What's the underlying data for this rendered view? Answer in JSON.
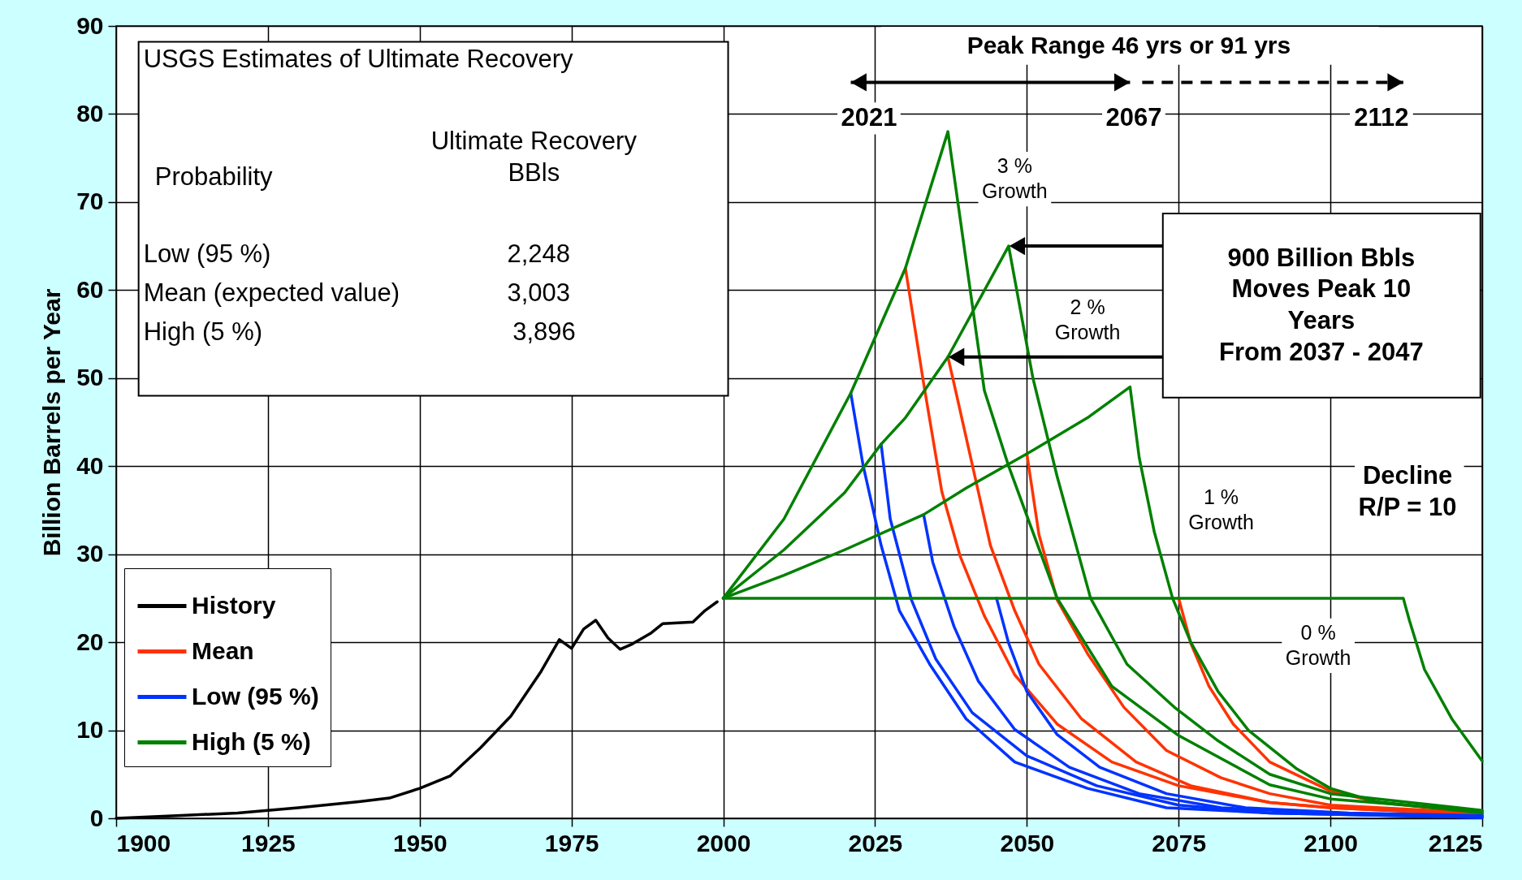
{
  "chart_data": {
    "type": "line",
    "ylabel": "Billion Barrels per Year",
    "xlim": [
      1900,
      2125
    ],
    "xticks": [
      1900,
      1925,
      1950,
      1975,
      2000,
      2025,
      2050,
      2075,
      2100,
      2125
    ],
    "ylim": [
      0,
      90
    ],
    "yticks": [
      0,
      10,
      20,
      30,
      40,
      50,
      60,
      70,
      80,
      90
    ],
    "grid": true,
    "legend": "bottom left",
    "series": [
      {
        "name": "History",
        "color": "#000000",
        "x": [
          1900,
          1910,
          1920,
          1925,
          1930,
          1940,
          1945,
          1950,
          1955,
          1960,
          1965,
          1970,
          1973,
          1975,
          1977,
          1979,
          1981,
          1983,
          1985,
          1988,
          1990,
          1995,
          1997,
          1999
        ],
        "values": [
          0,
          0.3,
          0.6,
          0.9,
          1.2,
          1.9,
          2.3,
          3.4,
          4.8,
          8,
          11.6,
          16.7,
          20.3,
          19.3,
          21.5,
          22.5,
          20.5,
          19.2,
          19.8,
          21,
          22.1,
          22.3,
          23.6,
          24.6
        ]
      },
      {
        "name": "Mean",
        "color": "#ff3300",
        "x": [
          2030,
          2033,
          2036,
          2039,
          2043,
          2048,
          2055,
          2064,
          2075,
          2090,
          2100,
          2125
        ],
        "values": [
          62.5,
          49.4,
          37.1,
          29.8,
          23,
          16.3,
          10.7,
          6.4,
          3.7,
          1.8,
          1.2,
          0.4
        ]
      },
      {
        "color": "#ff3300",
        "x": [
          2037,
          2038,
          2041,
          2044,
          2048,
          2052,
          2059,
          2068,
          2077,
          2090,
          2100,
          2125
        ],
        "values": [
          52.4,
          49.4,
          40.2,
          31,
          23.6,
          17.5,
          11.3,
          6.4,
          3.7,
          1.8,
          1.2,
          0.4
        ]
      },
      {
        "color": "#ff3300",
        "x": [
          2050,
          2052,
          2055,
          2060,
          2066,
          2073,
          2082,
          2090,
          2100,
          2125
        ],
        "values": [
          41.4,
          32.2,
          24.8,
          18.7,
          12.6,
          7.7,
          4.6,
          2.8,
          1.5,
          0.6
        ]
      },
      {
        "color": "#ff3300",
        "x": [
          2075,
          2077,
          2080,
          2084,
          2090,
          2100,
          2108,
          2125
        ],
        "values": [
          25,
          19.9,
          15,
          10.7,
          6.4,
          3.1,
          1.8,
          0.6
        ]
      },
      {
        "name": "Low (95 %)",
        "color": "#0033ff",
        "x": [
          2021,
          2023,
          2026,
          2029,
          2034,
          2040,
          2048,
          2060,
          2073,
          2090,
          2125
        ],
        "values": [
          48.3,
          40.2,
          31,
          23.6,
          17.5,
          11.3,
          6.4,
          3.4,
          1.2,
          0.6,
          0.1
        ]
      },
      {
        "color": "#0033ff",
        "x": [
          2026,
          2027.5,
          2031,
          2035,
          2041,
          2050,
          2061.5,
          2075,
          2090,
          2125
        ],
        "values": [
          42.5,
          34,
          24.8,
          18.1,
          12,
          7.1,
          3.7,
          1.5,
          0.6,
          0.1
        ]
      },
      {
        "color": "#0033ff",
        "x": [
          2033,
          2034.5,
          2038,
          2042,
          2048,
          2057,
          2068.5,
          2082,
          2099,
          2125
        ],
        "values": [
          34.5,
          29.1,
          21.8,
          15.6,
          10.1,
          5.8,
          2.8,
          1.2,
          0.6,
          0.2
        ]
      },
      {
        "color": "#0033ff",
        "x": [
          2045,
          2047,
          2050,
          2055,
          2062,
          2073,
          2086,
          2103,
          2125
        ],
        "values": [
          25,
          19.9,
          14.4,
          9.5,
          5.8,
          2.8,
          1.2,
          0.6,
          0.3
        ]
      },
      {
        "name": "High (5 %)",
        "color": "#008000",
        "x": [
          2000,
          2010,
          2021,
          2030,
          2037,
          2043,
          2047,
          2055,
          2064,
          2075,
          2090,
          2100,
          2125
        ],
        "values": [
          25,
          34,
          48.3,
          62.5,
          78,
          48.6,
          40,
          25,
          15,
          9.4,
          3.8,
          2.2,
          0.8
        ]
      },
      {
        "color": "#008000",
        "x": [
          2000,
          2010,
          2020,
          2026,
          2030,
          2037,
          2047,
          2051,
          2055,
          2060.5,
          2066.5,
          2074.5,
          2081.5,
          2090,
          2100,
          2125
        ],
        "values": [
          25,
          30.5,
          37,
          42.5,
          45.5,
          52.4,
          65,
          50,
          38.8,
          25,
          17.5,
          12.5,
          8.8,
          5,
          2.8,
          0.9
        ]
      },
      {
        "color": "#008000",
        "x": [
          2000,
          2010,
          2020,
          2033,
          2040,
          2050,
          2060,
          2067,
          2068.5,
          2071,
          2074,
          2077,
          2081.5,
          2086.5,
          2094.5,
          2100,
          2107.5,
          2125
        ],
        "values": [
          25,
          27.6,
          30.5,
          34.5,
          37.5,
          41.4,
          45.5,
          49,
          41,
          32.5,
          25,
          20,
          14.4,
          10,
          5.6,
          3.4,
          1.9,
          0.6
        ]
      },
      {
        "color": "#008000",
        "x": [
          2000,
          2112,
          2113,
          2115.5,
          2120,
          2125
        ],
        "values": [
          25,
          25,
          22.5,
          16.9,
          11.3,
          6.5
        ]
      }
    ],
    "annotations": [
      "USGS Estimates of Ultimate Recovery",
      "Ultimate Recovery\nBBls",
      "Probability",
      "Low (95 %)",
      "2,248",
      "Mean (expected value)",
      "3,003",
      "High (5 %)",
      "3,896",
      "Peak Range 46 yrs or 91 yrs",
      "2021",
      "2067",
      "2112",
      "3 %\nGrowth",
      "2 %\nGrowth",
      "1 %\nGrowth",
      "0 %\nGrowth",
      "900 Billion Bbls\nMoves Peak 10\nYears\nFrom 2037 - 2047",
      "Decline\nR/P = 10"
    ]
  }
}
